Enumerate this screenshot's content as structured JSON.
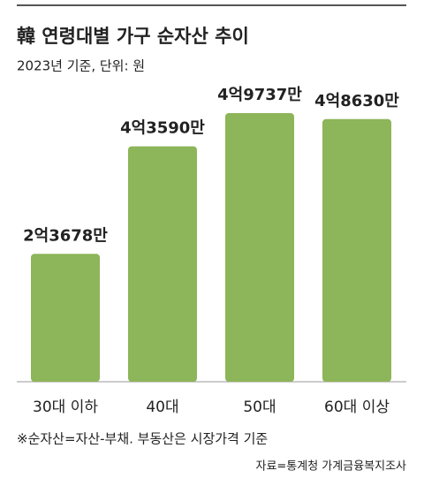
{
  "chart_data": {
    "type": "bar",
    "title": "韓 연령대별 가구 순자산 추이",
    "subtitle": "2023년 기준, 단위: 원",
    "categories": [
      "30대 이하",
      "40대",
      "50대",
      "60대 이상"
    ],
    "values": [
      236780000,
      435900000,
      497370000,
      486300000
    ],
    "value_labels": [
      "2억3678만",
      "4억3590만",
      "4억9737만",
      "4억8630만"
    ],
    "color": "#8db559",
    "note": "※순자산=자산-부채. 부동산은 시장가격 기준",
    "source": "자료=통계청 가계금융복지조사"
  }
}
